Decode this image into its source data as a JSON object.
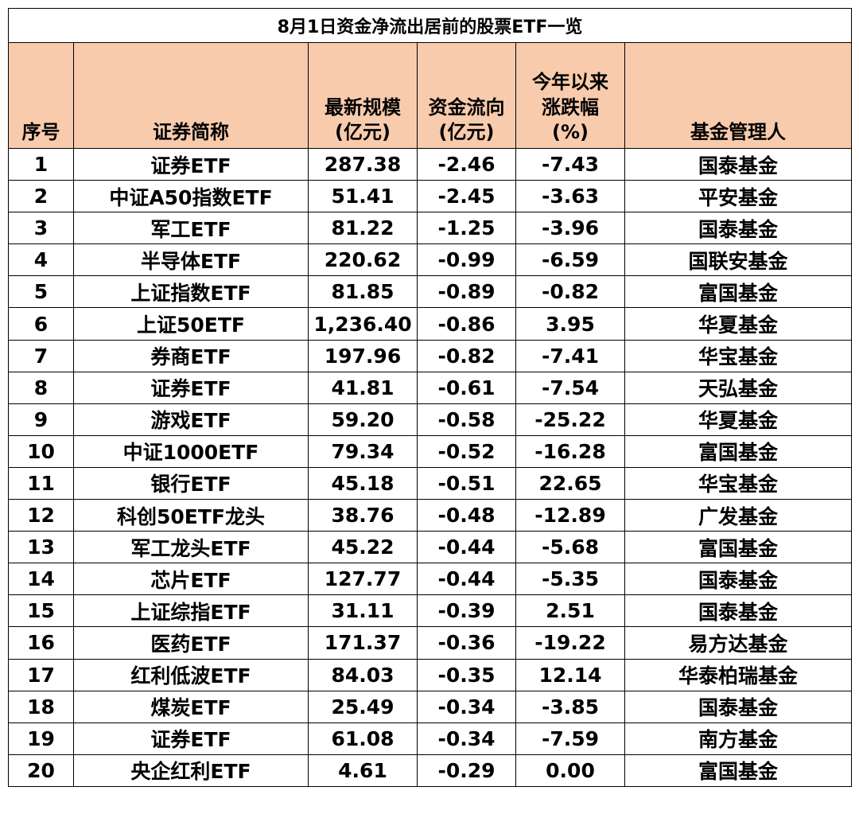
{
  "title": "8月1日资金净流出居前的股票ETF一览",
  "headers": {
    "rank": [
      "序号"
    ],
    "name": [
      "证券简称"
    ],
    "scale": [
      "最新规模",
      "(亿元)"
    ],
    "flow": [
      "资金流向",
      "(亿元)"
    ],
    "ytd": [
      "今年以来",
      "涨跌幅",
      "(%)"
    ],
    "manager": [
      "基金管理人"
    ]
  },
  "colors": {
    "header_bg": "#f8cbad",
    "border": "#000000"
  },
  "rows": [
    {
      "rank": "1",
      "name": "证券ETF",
      "scale": "287.38",
      "flow": "-2.46",
      "ytd": "-7.43",
      "manager": "国泰基金"
    },
    {
      "rank": "2",
      "name": "中证A50指数ETF",
      "scale": "51.41",
      "flow": "-2.45",
      "ytd": "-3.63",
      "manager": "平安基金"
    },
    {
      "rank": "3",
      "name": "军工ETF",
      "scale": "81.22",
      "flow": "-1.25",
      "ytd": "-3.96",
      "manager": "国泰基金"
    },
    {
      "rank": "4",
      "name": "半导体ETF",
      "scale": "220.62",
      "flow": "-0.99",
      "ytd": "-6.59",
      "manager": "国联安基金"
    },
    {
      "rank": "5",
      "name": "上证指数ETF",
      "scale": "81.85",
      "flow": "-0.89",
      "ytd": "-0.82",
      "manager": "富国基金"
    },
    {
      "rank": "6",
      "name": "上证50ETF",
      "scale": "1,236.40",
      "flow": "-0.86",
      "ytd": "3.95",
      "manager": "华夏基金"
    },
    {
      "rank": "7",
      "name": "券商ETF",
      "scale": "197.96",
      "flow": "-0.82",
      "ytd": "-7.41",
      "manager": "华宝基金"
    },
    {
      "rank": "8",
      "name": "证券ETF",
      "scale": "41.81",
      "flow": "-0.61",
      "ytd": "-7.54",
      "manager": "天弘基金"
    },
    {
      "rank": "9",
      "name": "游戏ETF",
      "scale": "59.20",
      "flow": "-0.58",
      "ytd": "-25.22",
      "manager": "华夏基金"
    },
    {
      "rank": "10",
      "name": "中证1000ETF",
      "scale": "79.34",
      "flow": "-0.52",
      "ytd": "-16.28",
      "manager": "富国基金"
    },
    {
      "rank": "11",
      "name": "银行ETF",
      "scale": "45.18",
      "flow": "-0.51",
      "ytd": "22.65",
      "manager": "华宝基金"
    },
    {
      "rank": "12",
      "name": "科创50ETF龙头",
      "scale": "38.76",
      "flow": "-0.48",
      "ytd": "-12.89",
      "manager": "广发基金"
    },
    {
      "rank": "13",
      "name": "军工龙头ETF",
      "scale": "45.22",
      "flow": "-0.44",
      "ytd": "-5.68",
      "manager": "富国基金"
    },
    {
      "rank": "14",
      "name": "芯片ETF",
      "scale": "127.77",
      "flow": "-0.44",
      "ytd": "-5.35",
      "manager": "国泰基金"
    },
    {
      "rank": "15",
      "name": "上证综指ETF",
      "scale": "31.11",
      "flow": "-0.39",
      "ytd": "2.51",
      "manager": "国泰基金"
    },
    {
      "rank": "16",
      "name": "医药ETF",
      "scale": "171.37",
      "flow": "-0.36",
      "ytd": "-19.22",
      "manager": "易方达基金"
    },
    {
      "rank": "17",
      "name": "红利低波ETF",
      "scale": "84.03",
      "flow": "-0.35",
      "ytd": "12.14",
      "manager": "华泰柏瑞基金"
    },
    {
      "rank": "18",
      "name": "煤炭ETF",
      "scale": "25.49",
      "flow": "-0.34",
      "ytd": "-3.85",
      "manager": "国泰基金"
    },
    {
      "rank": "19",
      "name": "证券ETF",
      "scale": "61.08",
      "flow": "-0.34",
      "ytd": "-7.59",
      "manager": "南方基金"
    },
    {
      "rank": "20",
      "name": "央企红利ETF",
      "scale": "4.61",
      "flow": "-0.29",
      "ytd": "0.00",
      "manager": "富国基金"
    }
  ]
}
